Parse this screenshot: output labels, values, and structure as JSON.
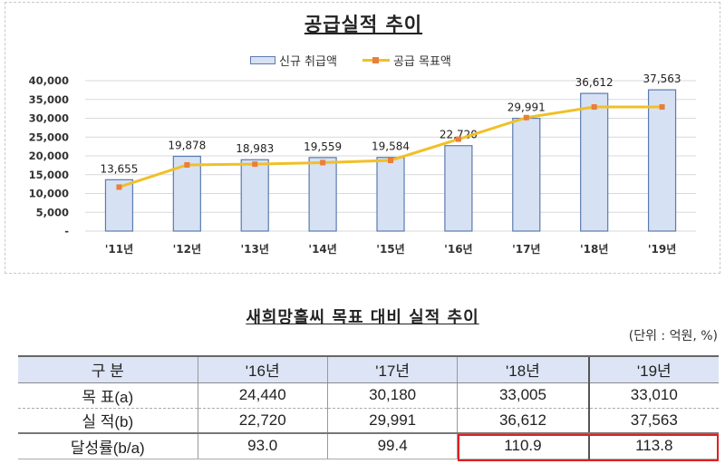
{
  "chart": {
    "title": "공급실적 추이",
    "legend": {
      "bar_label": "신규 취급액",
      "line_label": "공급 목표액"
    },
    "y_ticks": [
      "40,000",
      "35,000",
      "30,000",
      "25,000",
      "20,000",
      "15,000",
      "10,000",
      "5,000",
      "-"
    ],
    "x_labels": [
      "'11년",
      "'12년",
      "'13년",
      "'14년",
      "'15년",
      "'16년",
      "'17년",
      "'18년",
      "'19년"
    ],
    "bar_labels": [
      "13,655",
      "19,878",
      "18,983",
      "19,559",
      "19,584",
      "22,720",
      "29,991",
      "36,612",
      "37,563"
    ],
    "colors": {
      "bar_fill": "#d6e1f3",
      "bar_border": "#5b7bb0",
      "line": "#f0c028",
      "marker": "#e87f3a"
    }
  },
  "chart_data": {
    "type": "bar",
    "title": "공급실적 추이",
    "categories": [
      "'11년",
      "'12년",
      "'13년",
      "'14년",
      "'15년",
      "'16년",
      "'17년",
      "'18년",
      "'19년"
    ],
    "series": [
      {
        "name": "신규 취급액",
        "type": "bar",
        "values": [
          13655,
          19878,
          18983,
          19559,
          19584,
          22720,
          29991,
          36612,
          37563
        ]
      },
      {
        "name": "공급 목표액",
        "type": "line",
        "values": [
          11700,
          17600,
          17800,
          18200,
          18800,
          24440,
          30180,
          33005,
          33010
        ]
      }
    ],
    "xlabel": "",
    "ylabel": "",
    "ylim": [
      0,
      40000
    ],
    "yticks": [
      0,
      5000,
      10000,
      15000,
      20000,
      25000,
      30000,
      35000,
      40000
    ],
    "grid": true,
    "legend_position": "top"
  },
  "table": {
    "title": "새희망홀씨 목표 대비 실적 추이",
    "unit": "(단위 : 억원, %)",
    "headers": [
      "구 분",
      "'16년",
      "'17년",
      "'18년",
      "'19년"
    ],
    "rows": [
      {
        "label": "목 표(a)",
        "values": [
          "24,440",
          "30,180",
          "33,005",
          "33,010"
        ]
      },
      {
        "label": "실 적(b)",
        "values": [
          "22,720",
          "29,991",
          "36,612",
          "37,563"
        ]
      },
      {
        "label": "달성률(b/a)",
        "values": [
          "93.0",
          "99.4",
          "110.9",
          "113.8"
        ]
      }
    ],
    "highlight_color": "#e02020"
  }
}
